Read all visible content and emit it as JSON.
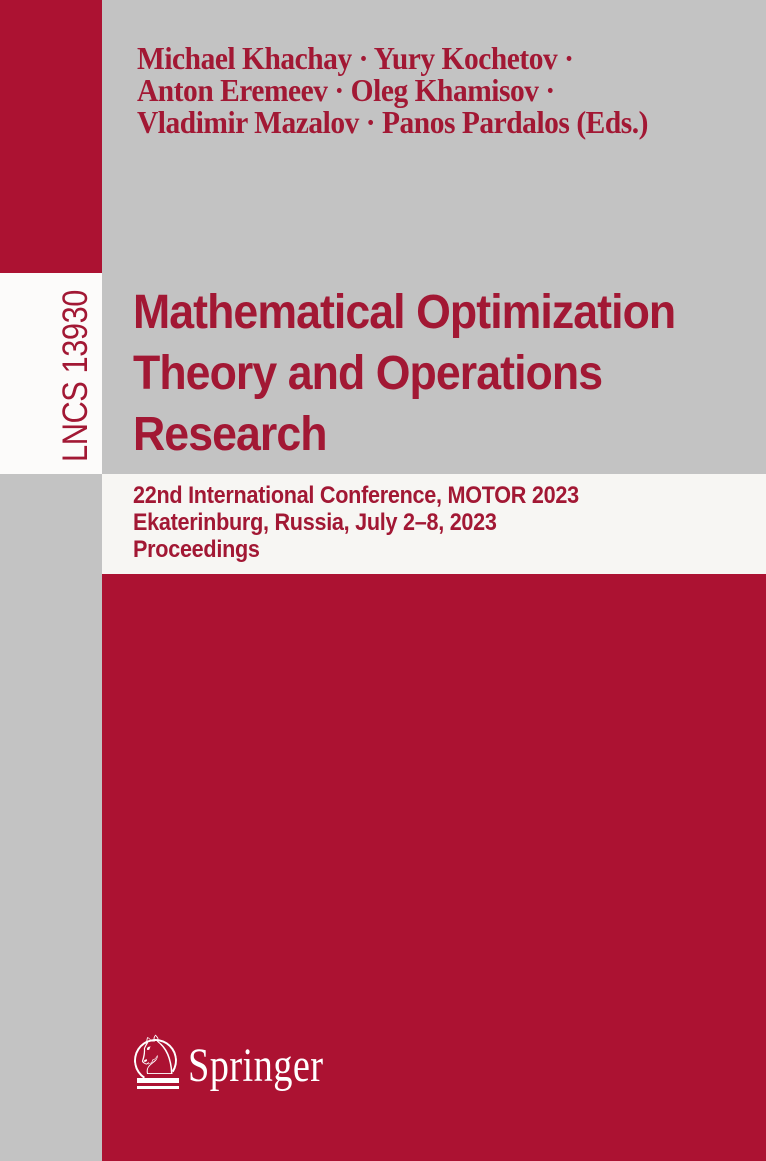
{
  "series": {
    "label": "LNCS 13930"
  },
  "editors": {
    "lines": [
      "Michael Khachay · Yury Kochetov ·",
      "Anton Eremeev · Oleg Khamisov ·",
      "Vladimir Mazalov · Panos Pardalos (Eds.)"
    ]
  },
  "title": {
    "lines": [
      "Mathematical Optimization",
      "Theory and Operations",
      "Research"
    ]
  },
  "subtitle": {
    "lines": [
      "22nd International Conference, MOTOR 2023",
      "Ekaterinburg, Russia, July 2–8, 2023",
      "Proceedings"
    ]
  },
  "publisher": {
    "name": "Springer",
    "knight_glyph": "♘"
  },
  "colors": {
    "red": "#AC1232",
    "text_red": "#A21834",
    "gray": "#C3C3C3",
    "strip_white": "#FCFBFA",
    "band_white": "#F7F6F3",
    "logo_white": "#FFFFFF"
  }
}
